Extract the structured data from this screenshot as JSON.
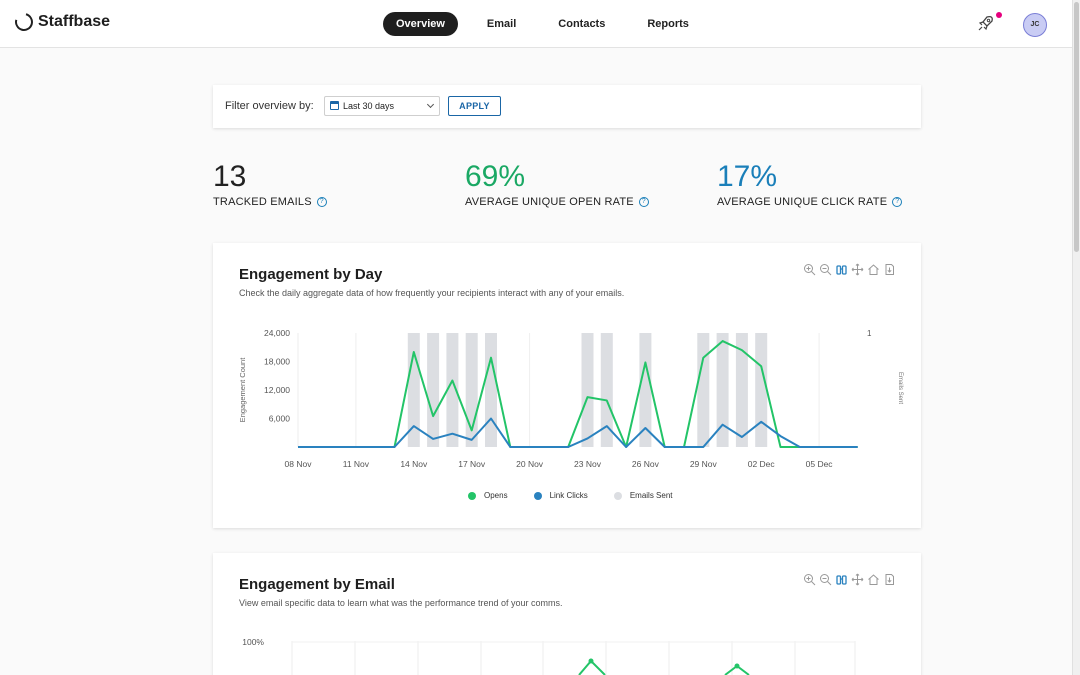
{
  "app": {
    "name": "Staffbase",
    "avatar_initials": "JC"
  },
  "nav": {
    "items": [
      {
        "label": "Overview",
        "active": true
      },
      {
        "label": "Email",
        "active": false
      },
      {
        "label": "Contacts",
        "active": false
      },
      {
        "label": "Reports",
        "active": false
      }
    ]
  },
  "filter": {
    "label": "Filter overview by:",
    "selected": "Last 30 days",
    "apply_label": "APPLY"
  },
  "stats": [
    {
      "value": "13",
      "label": "TRACKED EMAILS",
      "color": "#222222"
    },
    {
      "value": "69%",
      "label": "AVERAGE UNIQUE OPEN RATE",
      "color": "#1aa864"
    },
    {
      "value": "17%",
      "label": "AVERAGE UNIQUE CLICK RATE",
      "color": "#1a7fb9"
    }
  ],
  "colors": {
    "opens": "#23c468",
    "clicks": "#2a82bf",
    "sent": "#dcdee2",
    "accent": "#1a66a6"
  },
  "engagement_day": {
    "title": "Engagement by Day",
    "subtitle": "Check the daily aggregate data of how frequently your recipients interact with any of your emails.",
    "toolbar_icons": [
      "zoom-in-icon",
      "zoom-out-icon",
      "selection-zoom-icon",
      "pan-icon",
      "home-icon",
      "download-icon"
    ]
  },
  "engagement_email": {
    "title": "Engagement by Email",
    "subtitle": "View email specific data to learn what was the performance trend of your comms.",
    "y_tick_top": "100%"
  },
  "chart_data": [
    {
      "type": "line",
      "title": "Engagement by Day",
      "ylabel": "Engagement Count",
      "y2label": "Emails Sent",
      "ylim": [
        0,
        24000
      ],
      "yticks": [
        "6,000",
        "12,000",
        "18,000",
        "24,000"
      ],
      "y2ticks": [
        "1"
      ],
      "xtick_labels": [
        "08 Nov",
        "11 Nov",
        "14 Nov",
        "17 Nov",
        "20 Nov",
        "23 Nov",
        "26 Nov",
        "29 Nov",
        "02 Dec",
        "05 Dec"
      ],
      "x": [
        "08 Nov",
        "09 Nov",
        "10 Nov",
        "11 Nov",
        "12 Nov",
        "13 Nov",
        "14 Nov",
        "15 Nov",
        "16 Nov",
        "17 Nov",
        "18 Nov",
        "19 Nov",
        "20 Nov",
        "21 Nov",
        "22 Nov",
        "23 Nov",
        "24 Nov",
        "25 Nov",
        "26 Nov",
        "27 Nov",
        "28 Nov",
        "29 Nov",
        "30 Nov",
        "01 Dec",
        "02 Dec",
        "03 Dec",
        "04 Dec",
        "05 Dec",
        "06 Dec",
        "07 Dec"
      ],
      "series": [
        {
          "name": "Opens",
          "kind": "line",
          "values": [
            0,
            0,
            0,
            0,
            0,
            0,
            20000,
            6500,
            14000,
            3500,
            18800,
            0,
            0,
            0,
            0,
            10500,
            9800,
            0,
            17800,
            0,
            0,
            18800,
            22300,
            20400,
            17000,
            0,
            0,
            0,
            0,
            0
          ]
        },
        {
          "name": "Link Clicks",
          "kind": "line",
          "values": [
            0,
            0,
            0,
            0,
            0,
            0,
            4400,
            1700,
            2800,
            1500,
            6000,
            0,
            0,
            0,
            0,
            1800,
            4400,
            0,
            4000,
            0,
            0,
            0,
            4700,
            2100,
            5300,
            2300,
            0,
            0,
            0,
            0
          ]
        },
        {
          "name": "Emails Sent",
          "kind": "bar",
          "axis": "right",
          "values": [
            0,
            0,
            0,
            0,
            0,
            0,
            1,
            1,
            1,
            1,
            1,
            0,
            0,
            0,
            0,
            1,
            1,
            0,
            1,
            0,
            0,
            1,
            1,
            1,
            1,
            0,
            0,
            0,
            0,
            0
          ]
        }
      ],
      "legend": "bottom-center",
      "grid": true
    },
    {
      "type": "line",
      "title": "Engagement by Email",
      "yticks": [
        "100%"
      ]
    }
  ]
}
